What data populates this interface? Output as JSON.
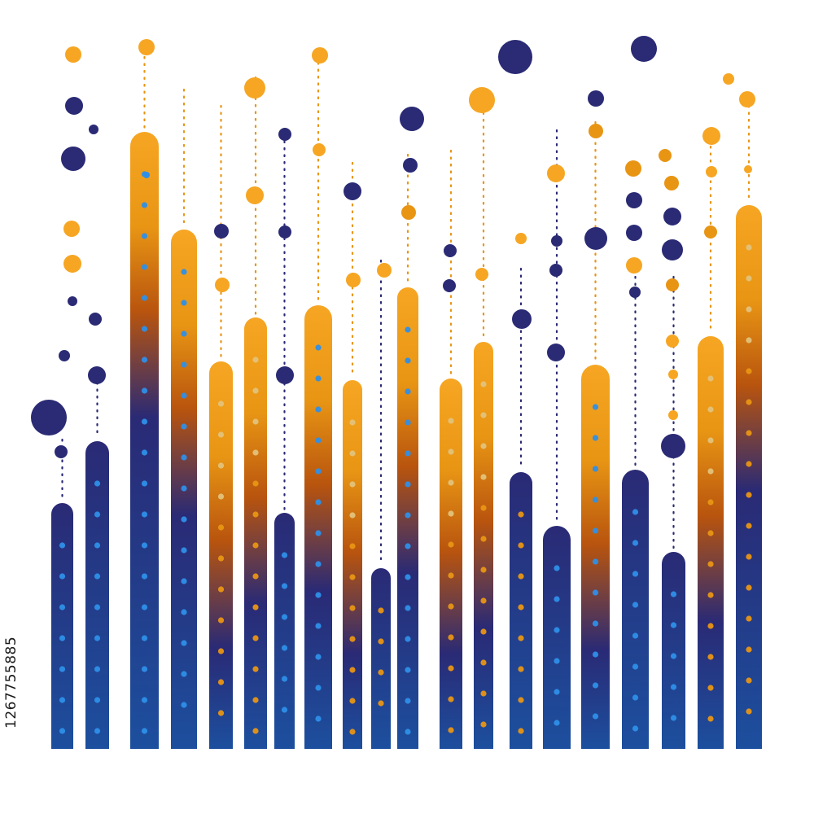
{
  "image": {
    "stock_id": "1267755885",
    "colors": {
      "navy": "#2a2a75",
      "deep_blue": "#1c4f9e",
      "orange": "#f6a623",
      "amber": "#e89514",
      "rust": "#b8540e",
      "light_blue_dot": "#2e8fe8"
    }
  }
}
